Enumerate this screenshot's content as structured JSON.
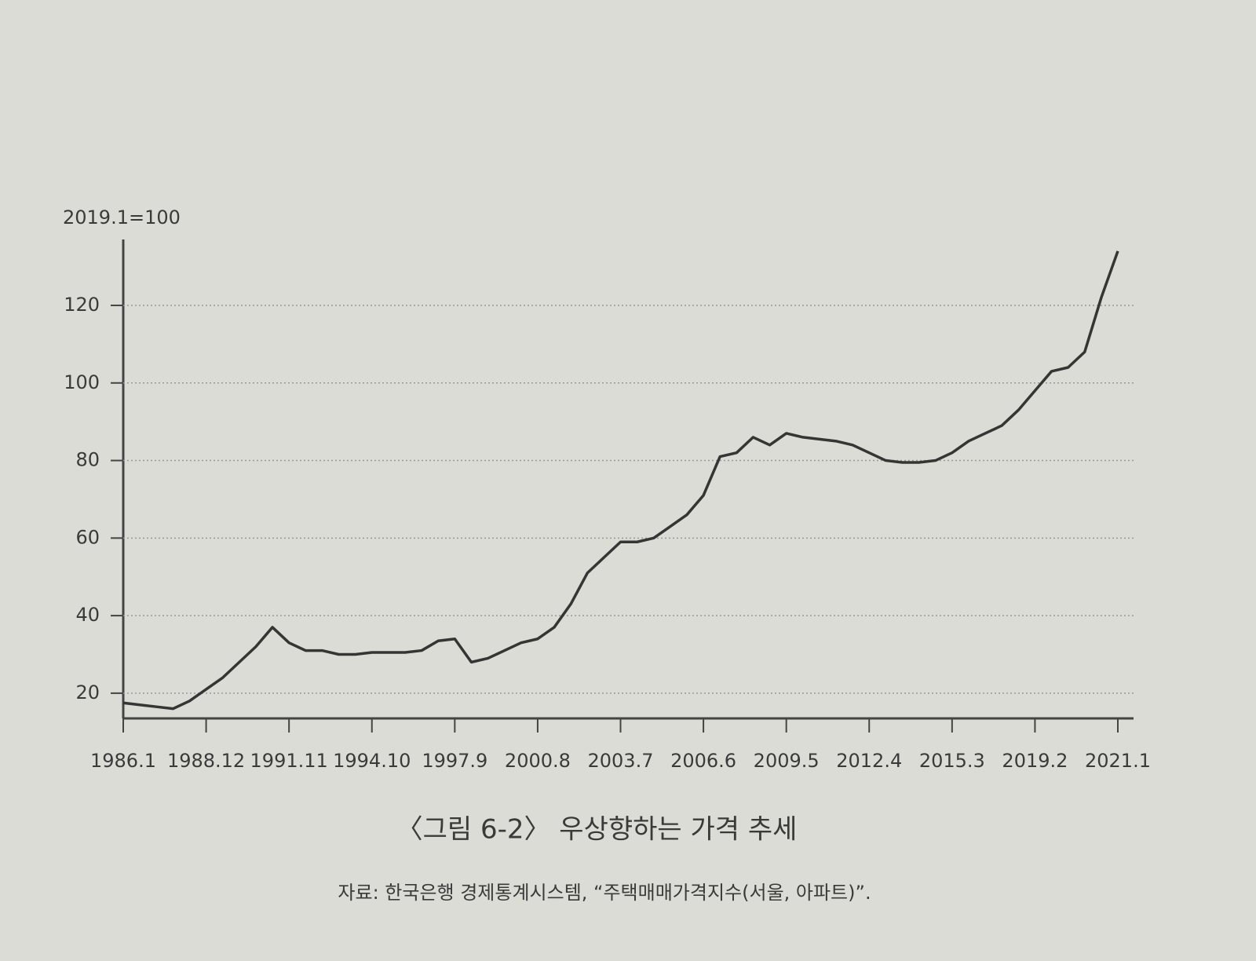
{
  "chart_data": {
    "type": "line",
    "y_unit_label": "2019.1=100",
    "caption": "〈그림 6-2〉 우상향하는 가격 추세",
    "source": "자료: 한국은행 경제통계시스템, “주택매매가격지수(서울, 아파트)”.",
    "categories": [
      "1986.1",
      null,
      null,
      null,
      null,
      "1988.12",
      null,
      null,
      null,
      null,
      "1991.11",
      null,
      null,
      null,
      null,
      "1994.10",
      null,
      null,
      null,
      null,
      "1997.9",
      null,
      null,
      null,
      null,
      "2000.8",
      null,
      null,
      null,
      null,
      "2003.7",
      null,
      null,
      null,
      null,
      "2006.6",
      null,
      null,
      null,
      null,
      "2009.5",
      null,
      null,
      null,
      null,
      "2012.4",
      null,
      null,
      null,
      null,
      "2015.3",
      null,
      null,
      null,
      null,
      "2019.2",
      null,
      null,
      null,
      null,
      "2021.1"
    ],
    "values": [
      17.5,
      17,
      16.5,
      16,
      18,
      21,
      24,
      28,
      32,
      37,
      33,
      31,
      31,
      30,
      30,
      30.5,
      30.5,
      30.5,
      31,
      33.5,
      34,
      28,
      29,
      31,
      33,
      34,
      37,
      43,
      51,
      55,
      59,
      59,
      60,
      63,
      66,
      71,
      81,
      82,
      86,
      84,
      87,
      86,
      85.5,
      85,
      84,
      82,
      80,
      79.5,
      79.5,
      80,
      82,
      85,
      87,
      89,
      93,
      98,
      103,
      104,
      108,
      122,
      134
    ],
    "color": "#353535",
    "ylim": [
      13.5,
      137
    ],
    "yticks": [
      20,
      40,
      60,
      80,
      100,
      120
    ],
    "grid": true
  }
}
